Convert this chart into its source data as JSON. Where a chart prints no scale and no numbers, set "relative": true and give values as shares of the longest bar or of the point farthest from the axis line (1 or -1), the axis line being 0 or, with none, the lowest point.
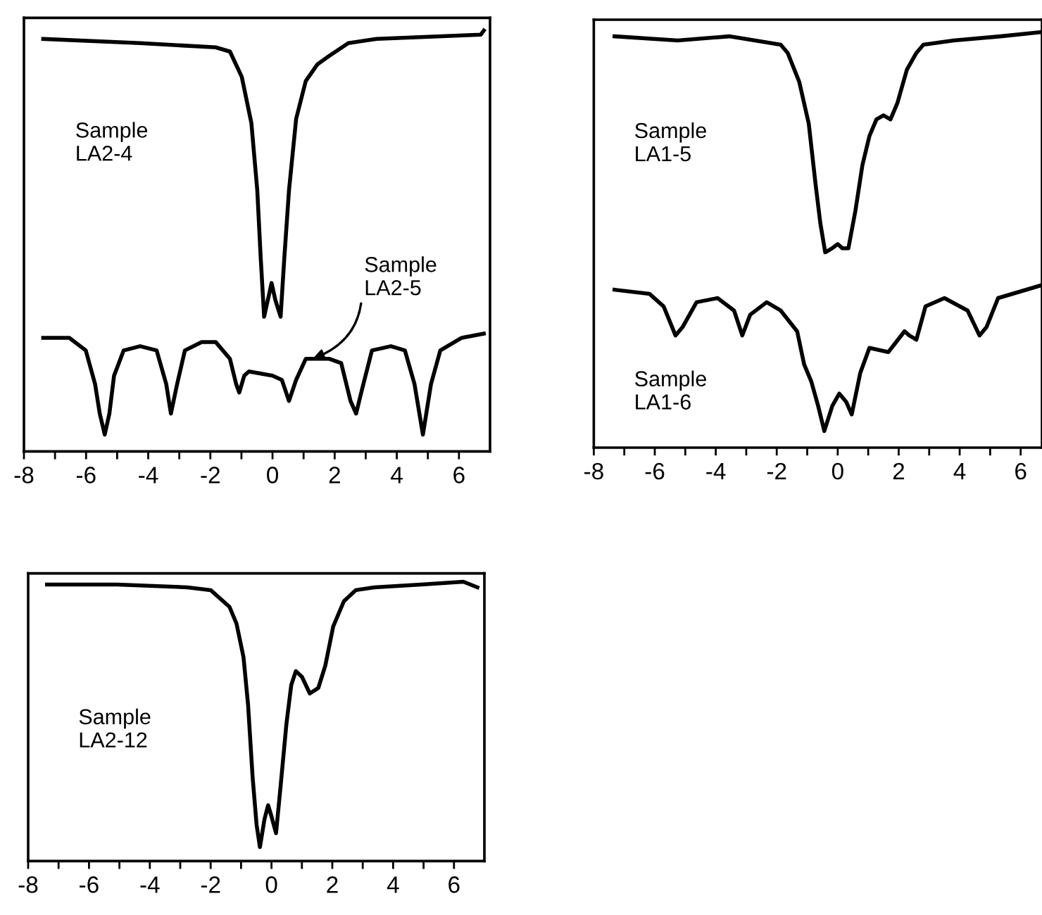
{
  "chart_data": [
    {
      "type": "line",
      "relative": true,
      "tick_labels": "x",
      "xlim": [
        -8,
        7
      ],
      "xticks": [
        -8,
        {
          "value": -7,
          "label": null
        },
        -6,
        {
          "value": -5,
          "label": null
        },
        -4,
        {
          "value": -3,
          "label": null
        },
        -2,
        {
          "value": -1,
          "label": null
        },
        0,
        {
          "value": 1,
          "label": null
        },
        2,
        {
          "value": 3,
          "label": null
        },
        4,
        {
          "value": 5,
          "label": null
        },
        6
      ],
      "series": [
        {
          "color": "#000000",
          "x": [
            -7.38,
            -4.26,
            -1.83,
            -1.37,
            -0.99,
            -0.68,
            -0.49,
            -0.38,
            -0.27,
            -0.15,
            -0.03,
            0.09,
            0.26,
            0.38,
            0.53,
            0.76,
            1.07,
            1.45,
            1.83,
            2.44,
            3.35,
            6.7,
            6.8
          ],
          "values": [
            0.98,
            0.97,
            0.96,
            0.95,
            0.89,
            0.78,
            0.62,
            0.46,
            0.32,
            0.36,
            0.4,
            0.36,
            0.32,
            0.46,
            0.62,
            0.79,
            0.88,
            0.92,
            0.94,
            0.97,
            0.98,
            0.99,
            1.0
          ]
        },
        {
          "color": "#000000",
          "x": [
            -7.38,
            -6.54,
            -6.01,
            -5.71,
            -5.56,
            -5.4,
            -5.25,
            -5.1,
            -4.79,
            -4.26,
            -3.73,
            -3.42,
            -3.27,
            -3.07,
            -2.82,
            -2.28,
            -1.83,
            -1.37,
            -1.17,
            -1.07,
            -0.91,
            -0.76,
            0,
            0.3,
            0.53,
            0.76,
            1.07,
            1.83,
            2.21,
            2.51,
            2.69,
            2.89,
            3.2,
            3.81,
            4.26,
            4.57,
            4.84,
            5.1,
            5.4,
            6.09,
            6.8
          ],
          "values": [
            0.27,
            0.27,
            0.24,
            0.16,
            0.09,
            0.04,
            0.09,
            0.18,
            0.24,
            0.25,
            0.24,
            0.16,
            0.09,
            0.16,
            0.24,
            0.26,
            0.26,
            0.22,
            0.16,
            0.14,
            0.18,
            0.19,
            0.18,
            0.17,
            0.12,
            0.17,
            0.22,
            0.22,
            0.21,
            0.12,
            0.09,
            0.15,
            0.24,
            0.25,
            0.24,
            0.16,
            0.04,
            0.16,
            0.24,
            0.27,
            0.28
          ]
        }
      ],
      "annotations": [
        "Sample\nLA2-4",
        {
          "text": "Sample\nLA2-5",
          "x": 1.29,
          "y": 0.22
        }
      ]
    },
    {
      "type": "line",
      "relative": true,
      "tick_labels": "x",
      "xlim": [
        -8,
        6.7
      ],
      "xticks": [
        -8,
        {
          "value": -7,
          "label": null
        },
        -6,
        {
          "value": -5,
          "label": null
        },
        -4,
        {
          "value": -3,
          "label": null
        },
        -2,
        {
          "value": -1,
          "label": null
        },
        0,
        {
          "value": 1,
          "label": null
        },
        2,
        {
          "value": 3,
          "label": null
        },
        4,
        {
          "value": 5,
          "label": null
        },
        6
      ],
      "series": [
        {
          "color": "#000000",
          "x": [
            -7.32,
            -5.25,
            -3.56,
            -1.87,
            -1.64,
            -1.26,
            -0.95,
            -0.72,
            -0.57,
            -0.41,
            -0.18,
            0,
            0.15,
            0.35,
            0.58,
            0.81,
            1.04,
            1.27,
            1.5,
            1.73,
            1.96,
            2.27,
            2.58,
            2.81,
            3.8,
            5.34,
            6.64
          ],
          "values": [
            0.99,
            0.98,
            0.99,
            0.97,
            0.95,
            0.88,
            0.78,
            0.63,
            0.54,
            0.47,
            0.48,
            0.49,
            0.48,
            0.48,
            0.57,
            0.68,
            0.75,
            0.79,
            0.8,
            0.79,
            0.83,
            0.91,
            0.95,
            0.97,
            0.98,
            0.99,
            1.0
          ]
        },
        {
          "color": "#000000",
          "x": [
            -7.32,
            -6.17,
            -5.71,
            -5.32,
            -5.09,
            -4.63,
            -3.94,
            -3.4,
            -3.13,
            -2.87,
            -2.33,
            -1.87,
            -1.33,
            -1.1,
            -0.87,
            -0.64,
            -0.44,
            -0.18,
            0.05,
            0.28,
            0.46,
            0.74,
            1.04,
            1.66,
            2.19,
            2.35,
            2.58,
            2.88,
            3.5,
            4.26,
            4.65,
            4.88,
            5.26,
            6.64
          ],
          "values": [
            0.38,
            0.37,
            0.34,
            0.27,
            0.29,
            0.35,
            0.36,
            0.33,
            0.27,
            0.32,
            0.35,
            0.33,
            0.28,
            0.2,
            0.16,
            0.1,
            0.04,
            0.1,
            0.13,
            0.11,
            0.08,
            0.18,
            0.24,
            0.23,
            0.28,
            0.27,
            0.26,
            0.34,
            0.36,
            0.33,
            0.27,
            0.29,
            0.36,
            0.39
          ]
        }
      ],
      "annotations": [
        "Sample\nLA1-5",
        "Sample\nLA1-6"
      ]
    },
    {
      "type": "line",
      "relative": true,
      "tick_labels": "x",
      "xlim": [
        -8,
        7
      ],
      "xticks": [
        -8,
        {
          "value": -7,
          "label": null
        },
        -6,
        {
          "value": -5,
          "label": null
        },
        -4,
        {
          "value": -3,
          "label": null
        },
        -2,
        {
          "value": -1,
          "label": null
        },
        0,
        {
          "value": 1,
          "label": null
        },
        2,
        {
          "value": 3,
          "label": null
        },
        4,
        {
          "value": 5,
          "label": null
        },
        6
      ],
      "series": [
        {
          "color": "#000000",
          "x": [
            -7.38,
            -5.08,
            -2.77,
            -2.0,
            -1.38,
            -1.15,
            -0.92,
            -0.77,
            -0.62,
            -0.49,
            -0.38,
            -0.23,
            -0.11,
            0,
            0.15,
            0.31,
            0.49,
            0.65,
            0.8,
            1.0,
            1.26,
            1.54,
            1.77,
            2.03,
            2.38,
            2.77,
            3.38,
            4.92,
            6.31,
            6.77
          ],
          "values": [
            0.99,
            0.99,
            0.98,
            0.97,
            0.91,
            0.85,
            0.73,
            0.56,
            0.3,
            0.13,
            0.05,
            0.15,
            0.2,
            0.16,
            0.1,
            0.28,
            0.49,
            0.63,
            0.68,
            0.66,
            0.6,
            0.62,
            0.7,
            0.84,
            0.93,
            0.97,
            0.98,
            0.99,
            1.0,
            0.98
          ]
        }
      ],
      "annotations": [
        "Sample\nLA2-12"
      ]
    }
  ]
}
